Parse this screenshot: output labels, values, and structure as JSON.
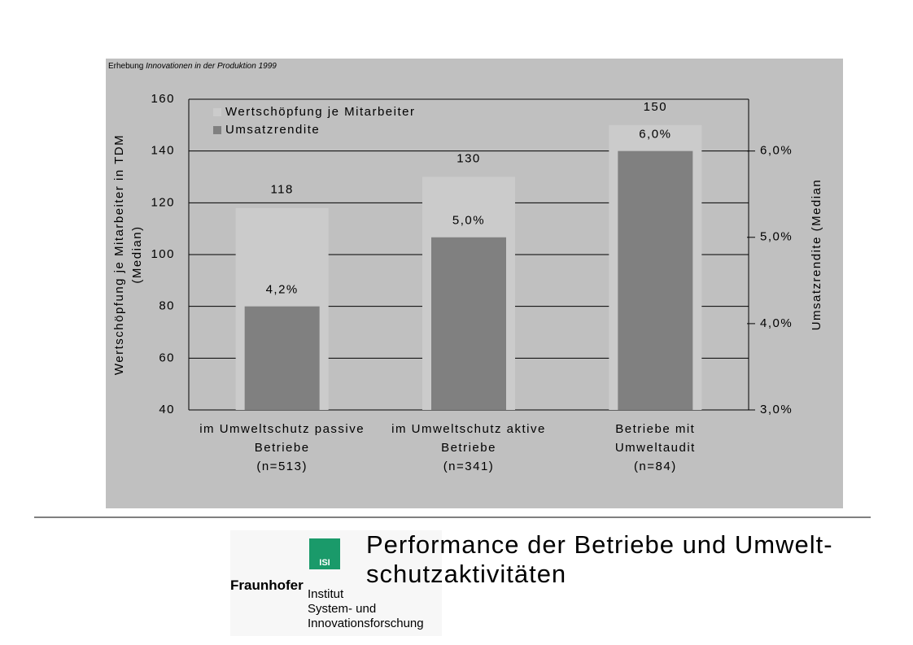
{
  "chart_data": {
    "type": "bar",
    "source_prefix": "Erhebung",
    "source_italic": "Innovationen in der Produktion 1999",
    "ylabel": [
      "Wertschöpfung je Mitarbeiter in TDM",
      "(Median)"
    ],
    "y2label": "Umsatzrendite  (Median",
    "categories": [
      [
        "im Umweltschutz passive",
        "Betriebe",
        "(n=513)"
      ],
      [
        "im Umweltschutz aktive",
        "Betriebe",
        "(n=341)"
      ],
      [
        "Betriebe mit",
        "Umweltaudit",
        "(n=84)"
      ]
    ],
    "series": [
      {
        "name": "Wertschöpfung je Mitarbeiter",
        "color": "#cbcbcb",
        "values": [
          118,
          130,
          150
        ]
      },
      {
        "name": "Umsatzrendite",
        "color": "#808080",
        "axis": "y2",
        "values": [
          4.2,
          5.0,
          6.0
        ],
        "value_labels": [
          "4,2%",
          "5,0%",
          "6,0%"
        ]
      }
    ],
    "ylim": [
      40,
      160
    ],
    "yticks": [
      40,
      60,
      80,
      100,
      120,
      140,
      160
    ],
    "y2lim": [
      3,
      6.6
    ],
    "y2ticks": [
      {
        "value": 3,
        "label": "3,0%"
      },
      {
        "value": 4,
        "label": "4,0%"
      },
      {
        "value": 5,
        "label": "5,0%"
      },
      {
        "value": 6,
        "label": "6,0%"
      }
    ],
    "grid": true,
    "legend": "top-left"
  },
  "footer": {
    "title": [
      "Performance der Betriebe und Umwelt-",
      "schutzaktivitäten"
    ],
    "logo": {
      "mark": "ISI",
      "brand": "Fraunhofer",
      "lines": [
        "Institut",
        "System- und",
        "Innovationsforschung"
      ]
    }
  }
}
